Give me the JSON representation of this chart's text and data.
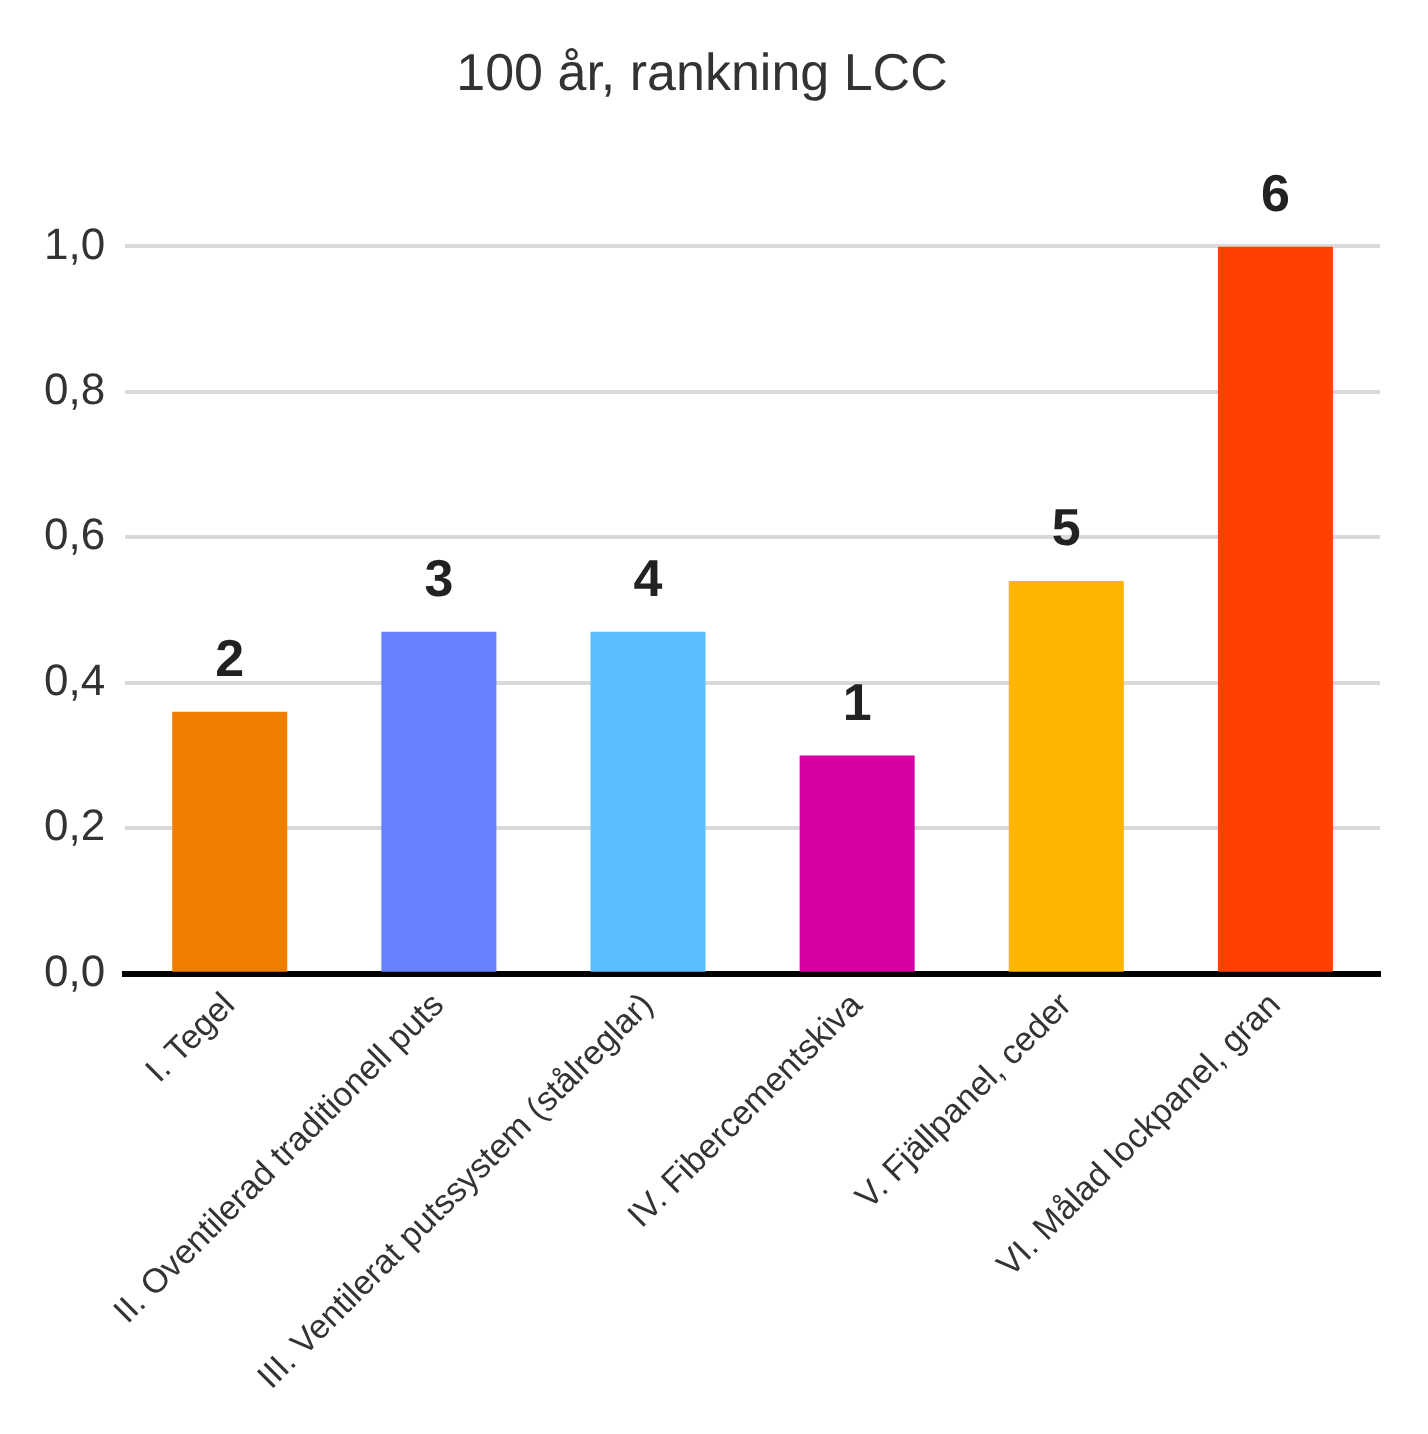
{
  "chart_data": {
    "type": "bar",
    "title": "100 år, rankning LCC",
    "categories": [
      "I. Tegel",
      "II. Oventilerad traditionell puts",
      "III. Ventilerat putssystem (stålreglar)",
      "IV. Fibercementskiva",
      "V. Fjällpanel, ceder",
      "VI. Målad lockpanel, gran"
    ],
    "values": [
      0.36,
      0.47,
      0.47,
      0.3,
      0.54,
      1.0
    ],
    "colors": [
      "#f07d00",
      "#6680ff",
      "#5bbfff",
      "#d4009f",
      "#ffb400",
      "#ff4000"
    ],
    "ylim": [
      0,
      1.0
    ],
    "yticks": [
      {
        "value": 0,
        "label": "0,0"
      },
      {
        "value": 0.2,
        "label": "0,2"
      },
      {
        "value": 0.4,
        "label": "0,4"
      },
      {
        "value": 0.6,
        "label": "0,6"
      },
      {
        "value": 0.8,
        "label": "0,8"
      },
      {
        "value": 1.0,
        "label": "1,0"
      }
    ],
    "grid": "y",
    "legend": false,
    "annotations": [
      {
        "text": "2",
        "x": "I. Tegel",
        "y": 0.36
      },
      {
        "text": "3",
        "x": "II. Oventilerad traditionell puts",
        "y": 0.47
      },
      {
        "text": "4",
        "x": "III. Ventilerat putssystem (stålreglar)",
        "y": 0.47
      },
      {
        "text": "1",
        "x": "IV. Fibercementskiva",
        "y": 0.3
      },
      {
        "text": "5",
        "x": "V. Fjällpanel, ceder",
        "y": 0.54
      },
      {
        "text": "6",
        "x": "VI. Målad lockpanel, gran",
        "y": 1.0
      }
    ]
  }
}
